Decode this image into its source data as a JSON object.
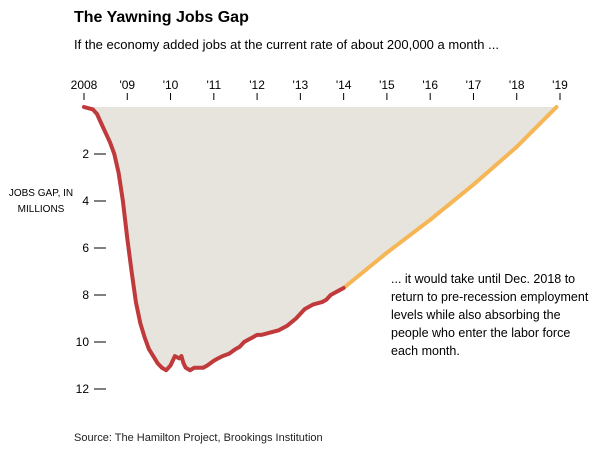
{
  "header": {
    "title": "The Yawning Jobs Gap",
    "subtitle": "If the economy added jobs at the current rate of about 200,000 a month ..."
  },
  "annotation": {
    "text": "... it would take until Dec. 2018 to return to pre-recession employment levels while also absorbing the people who enter the labor force each month."
  },
  "footer": {
    "source": "Source: The Hamilton Project, Brookings Institution"
  },
  "chart_data": {
    "type": "area",
    "title": "The Yawning Jobs Gap",
    "subtitle": "If the economy added jobs at the current rate of about 200,000 a month ...",
    "xlabel": "",
    "ylabel": "JOBS GAP, IN MILLIONS",
    "x_ticks": [
      "2008",
      "'09",
      "'10",
      "'11",
      "'12",
      "'13",
      "'14",
      "'15",
      "'16",
      "'17",
      "'18",
      "'19"
    ],
    "y_ticks": [
      2,
      4,
      6,
      8,
      10,
      12
    ],
    "xlim": [
      2008.0,
      2019.0
    ],
    "ylim": [
      0,
      12.5
    ],
    "y_inverted": true,
    "grid": false,
    "colors": {
      "actual": "#c0393b",
      "projected": "#f6b656",
      "fill": "#e6e4dc"
    },
    "series": [
      {
        "values_note": "actual",
        "x": [
          2008.0,
          2008.1,
          2008.2,
          2008.3,
          2008.4,
          2008.5,
          2008.6,
          2008.7,
          2008.8,
          2008.9,
          2009.0,
          2009.1,
          2009.2,
          2009.3,
          2009.4,
          2009.5,
          2009.6,
          2009.7,
          2009.8,
          2009.9,
          2010.0,
          2010.1,
          2010.2,
          2010.25,
          2010.3,
          2010.35,
          2010.45,
          2010.55,
          2010.65,
          2010.75,
          2010.85,
          2011.0,
          2011.1,
          2011.2,
          2011.35,
          2011.5,
          2011.6,
          2011.7,
          2011.8,
          2011.9,
          2012.0,
          2012.1,
          2012.3,
          2012.5,
          2012.7,
          2012.9,
          2013.0,
          2013.1,
          2013.3,
          2013.5,
          2013.6,
          2013.7,
          2013.8,
          2013.9,
          2014.0
        ],
        "y": [
          0.0,
          0.05,
          0.1,
          0.3,
          0.7,
          1.1,
          1.5,
          2.0,
          2.8,
          4.0,
          5.6,
          7.0,
          8.3,
          9.2,
          9.8,
          10.3,
          10.6,
          10.9,
          11.1,
          11.2,
          11.0,
          10.6,
          10.7,
          10.6,
          10.9,
          11.1,
          11.2,
          11.1,
          11.1,
          11.1,
          11.0,
          10.8,
          10.7,
          10.6,
          10.5,
          10.3,
          10.2,
          10.0,
          9.9,
          9.8,
          9.7,
          9.7,
          9.6,
          9.5,
          9.3,
          9.0,
          8.8,
          8.6,
          8.4,
          8.3,
          8.2,
          8.0,
          7.9,
          7.8,
          7.7
        ]
      },
      {
        "values_note": "projected",
        "x": [
          2014.0,
          2015.0,
          2016.0,
          2017.0,
          2018.0,
          2018.92
        ],
        "y": [
          7.7,
          6.2,
          4.8,
          3.3,
          1.7,
          0.0
        ]
      }
    ]
  }
}
